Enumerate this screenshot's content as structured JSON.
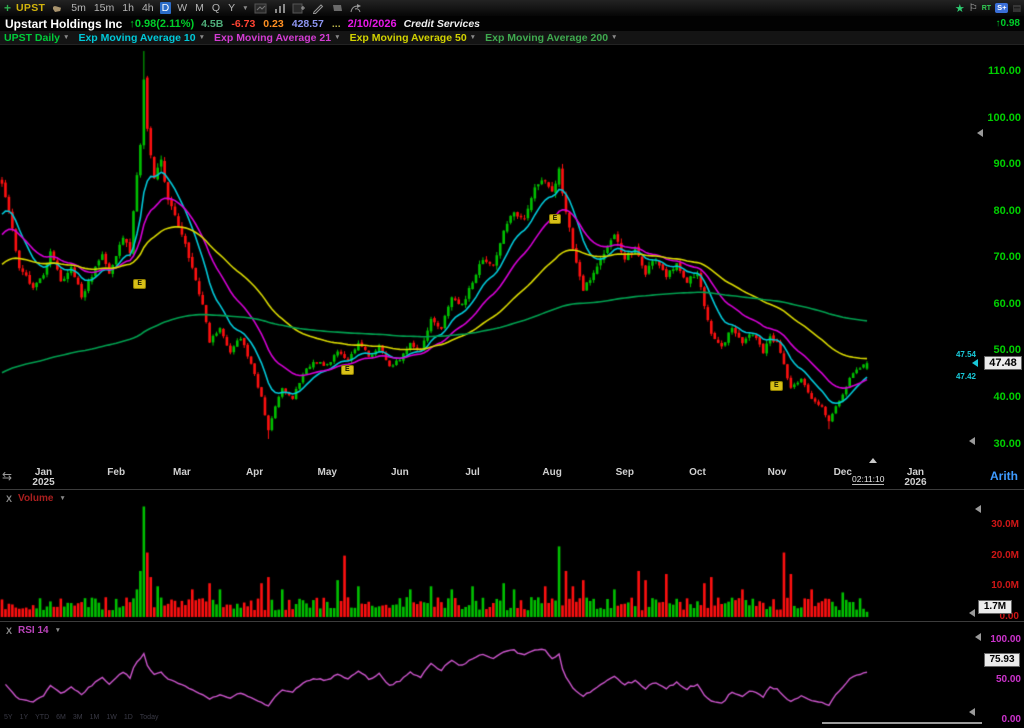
{
  "toolbar": {
    "symbol": "UPST",
    "timeframes": [
      "5m",
      "15m",
      "1h",
      "4h",
      "D",
      "W",
      "M",
      "Q",
      "Y"
    ],
    "selected_timeframe": "D",
    "rt_label": "RT",
    "splus_label": "S+"
  },
  "quote": {
    "company": "Upstart Holdings Inc",
    "change": "↑0.98(2.11%)",
    "stats": [
      {
        "text": "4.5B",
        "color": "#4fae7a"
      },
      {
        "text": "-6.73",
        "color": "#ff4433"
      },
      {
        "text": "0.23",
        "color": "#ff9022"
      },
      {
        "text": "428.57",
        "color": "#8d95f2"
      },
      {
        "text": "...",
        "color": "#b9b34a"
      }
    ],
    "date": "2/10/2026",
    "sector": "Credit Services",
    "mini_change": "↑0.98"
  },
  "indicator_bar": [
    {
      "label": "UPST Daily",
      "color": "#00cc3a"
    },
    {
      "label": "Exp Moving Average 10",
      "color": "#00c8d8"
    },
    {
      "label": "Exp Moving Average 21",
      "color": "#d23cd2"
    },
    {
      "label": "Exp Moving Average 50",
      "color": "#d2d200"
    },
    {
      "label": "Exp Moving Average 200",
      "color": "#3faa4f"
    }
  ],
  "price_axis": {
    "tick_values": [
      110,
      100,
      90,
      80,
      70,
      60,
      50,
      40,
      30
    ],
    "tick_labels": [
      "110.00",
      "100.00",
      "90.00",
      "80.00",
      "70.00",
      "60.00",
      "50.00",
      "40.00",
      "30.00"
    ],
    "last": "47.48",
    "ask": "47.54",
    "bid": "47.42",
    "scale": "Arith"
  },
  "date_axis": {
    "months": [
      {
        "label": "Jan",
        "sub": "2025",
        "day": 12
      },
      {
        "label": "Feb",
        "day": 33
      },
      {
        "label": "Mar",
        "day": 52
      },
      {
        "label": "Apr",
        "day": 73
      },
      {
        "label": "May",
        "day": 94
      },
      {
        "label": "Jun",
        "day": 115
      },
      {
        "label": "Jul",
        "day": 136
      },
      {
        "label": "Aug",
        "day": 159
      },
      {
        "label": "Sep",
        "day": 180
      },
      {
        "label": "Oct",
        "day": 201
      },
      {
        "label": "Nov",
        "day": 224
      },
      {
        "label": "Dec",
        "day": 243
      },
      {
        "label": "Jan",
        "sub": "2026",
        "day": 264
      }
    ],
    "countdown": "02:11:10"
  },
  "volume_panel": {
    "close": "X",
    "label": "Volume",
    "tick_values": [
      30,
      20,
      10,
      0
    ],
    "tick_labels": [
      "30.0M",
      "20.0M",
      "10.0M",
      "0.00"
    ],
    "last": "1.7M"
  },
  "rsi_panel": {
    "close": "X",
    "label": "RSI 14",
    "tick_values": [
      100,
      50,
      0
    ],
    "tick_labels": [
      "100.00",
      "50.00",
      "0.00"
    ],
    "last": "75.93"
  },
  "range_shortcuts": [
    "5Y",
    "1Y",
    "YTD",
    "6M",
    "3M",
    "1M",
    "1W",
    "1D",
    "Today"
  ],
  "chart_data": {
    "type": "candlestick",
    "symbol": "UPST",
    "timeframe": "Daily",
    "y_axis": {
      "min": 27,
      "max": 115
    },
    "days": 251,
    "close_anchors": [
      [
        0,
        86
      ],
      [
        2,
        80
      ],
      [
        5,
        68
      ],
      [
        9,
        64
      ],
      [
        12,
        66
      ],
      [
        14,
        72
      ],
      [
        17,
        65
      ],
      [
        20,
        68
      ],
      [
        23,
        62
      ],
      [
        26,
        66
      ],
      [
        29,
        71
      ],
      [
        31,
        67
      ],
      [
        33,
        70
      ],
      [
        35,
        75
      ],
      [
        37,
        71
      ],
      [
        39,
        88
      ],
      [
        40,
        95
      ],
      [
        41,
        108
      ],
      [
        42,
        98
      ],
      [
        44,
        87
      ],
      [
        46,
        91
      ],
      [
        48,
        83
      ],
      [
        50,
        79
      ],
      [
        52,
        75
      ],
      [
        55,
        68
      ],
      [
        58,
        60
      ],
      [
        60,
        52
      ],
      [
        63,
        55
      ],
      [
        66,
        50
      ],
      [
        69,
        53
      ],
      [
        72,
        47
      ],
      [
        73,
        45
      ],
      [
        75,
        40
      ],
      [
        77,
        33
      ],
      [
        79,
        38
      ],
      [
        81,
        42
      ],
      [
        84,
        40
      ],
      [
        87,
        45
      ],
      [
        90,
        48
      ],
      [
        94,
        47
      ],
      [
        97,
        50
      ],
      [
        100,
        48
      ],
      [
        103,
        52
      ],
      [
        106,
        49
      ],
      [
        109,
        51
      ],
      [
        112,
        47
      ],
      [
        115,
        48
      ],
      [
        118,
        52
      ],
      [
        121,
        50
      ],
      [
        124,
        57
      ],
      [
        127,
        55
      ],
      [
        130,
        62
      ],
      [
        133,
        60
      ],
      [
        136,
        65
      ],
      [
        139,
        70
      ],
      [
        142,
        68
      ],
      [
        145,
        76
      ],
      [
        148,
        80
      ],
      [
        151,
        78
      ],
      [
        154,
        85
      ],
      [
        157,
        87
      ],
      [
        159,
        84
      ],
      [
        161,
        89
      ],
      [
        163,
        80
      ],
      [
        165,
        72
      ],
      [
        168,
        63
      ],
      [
        171,
        67
      ],
      [
        174,
        71
      ],
      [
        177,
        75
      ],
      [
        180,
        70
      ],
      [
        183,
        72
      ],
      [
        186,
        67
      ],
      [
        189,
        70
      ],
      [
        192,
        66
      ],
      [
        195,
        69
      ],
      [
        198,
        65
      ],
      [
        201,
        67
      ],
      [
        203,
        60
      ],
      [
        205,
        54
      ],
      [
        208,
        51
      ],
      [
        211,
        55
      ],
      [
        214,
        52
      ],
      [
        217,
        54
      ],
      [
        220,
        50
      ],
      [
        222,
        53
      ],
      [
        224,
        52
      ],
      [
        226,
        47
      ],
      [
        228,
        42
      ],
      [
        231,
        44
      ],
      [
        234,
        40
      ],
      [
        237,
        38
      ],
      [
        239,
        35
      ],
      [
        241,
        38
      ],
      [
        243,
        41
      ],
      [
        245,
        44
      ],
      [
        247,
        46
      ],
      [
        250,
        47.48
      ]
    ],
    "wick_overrides": [
      {
        "day": 41,
        "high": 114.5
      },
      {
        "day": 77,
        "low": 31.2
      },
      {
        "day": 239,
        "low": 33.3
      }
    ],
    "emas": [
      {
        "period": 10,
        "color": "#00c8d8",
        "seed": 78
      },
      {
        "period": 21,
        "color": "#d400d4",
        "seed": 74
      },
      {
        "period": 50,
        "color": "#d8d800",
        "seed": 68
      },
      {
        "period": 200,
        "color": "#00a050",
        "seed": 45
      }
    ],
    "earnings_markers": [
      {
        "day": 40,
        "price": 64.5,
        "label": "E"
      },
      {
        "day": 100,
        "price": 46,
        "label": "E"
      },
      {
        "day": 160,
        "price": 78.5,
        "label": "E"
      },
      {
        "day": 224,
        "price": 42.5,
        "label": "E"
      }
    ],
    "volume_spikes": [
      [
        39,
        9
      ],
      [
        40,
        15
      ],
      [
        41,
        36
      ],
      [
        42,
        21
      ],
      [
        43,
        13
      ],
      [
        45,
        10
      ],
      [
        55,
        9
      ],
      [
        60,
        11
      ],
      [
        63,
        9
      ],
      [
        75,
        11
      ],
      [
        77,
        13
      ],
      [
        81,
        9
      ],
      [
        97,
        12
      ],
      [
        99,
        20
      ],
      [
        103,
        10
      ],
      [
        118,
        9
      ],
      [
        124,
        10
      ],
      [
        130,
        9
      ],
      [
        136,
        10
      ],
      [
        145,
        11
      ],
      [
        148,
        9
      ],
      [
        157,
        10
      ],
      [
        161,
        23
      ],
      [
        163,
        15
      ],
      [
        165,
        10
      ],
      [
        168,
        12
      ],
      [
        177,
        9
      ],
      [
        184,
        15
      ],
      [
        186,
        12
      ],
      [
        192,
        14
      ],
      [
        203,
        11
      ],
      [
        205,
        13
      ],
      [
        214,
        9
      ],
      [
        226,
        21
      ],
      [
        228,
        14
      ],
      [
        234,
        9
      ],
      [
        243,
        8
      ],
      [
        250,
        1.7
      ]
    ],
    "volume_base_millions": [
      2.2,
      6.5
    ],
    "rsi_period": 14,
    "last_values": {
      "price": 47.48,
      "bid": 47.42,
      "ask": 47.54,
      "volume_label": "1.7M",
      "rsi": 75.93
    },
    "colors": {
      "up": "#00c000",
      "down": "#fe1010",
      "rsi": "#cc55cc",
      "axis_green": "#00d000",
      "axis_red": "#cf1616",
      "axis_magenta": "#cc33cc"
    }
  }
}
